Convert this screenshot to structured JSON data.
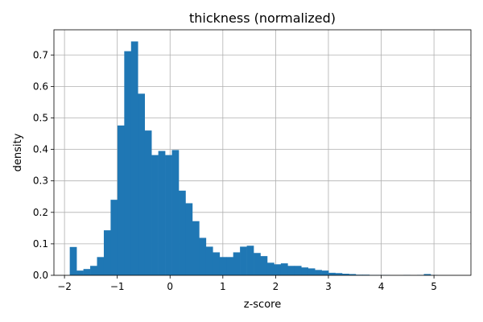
{
  "chart_data": {
    "type": "bar",
    "title": "thickness (normalized)",
    "xlabel": "z-score",
    "ylabel": "density",
    "xlim": [
      -2.2,
      5.7
    ],
    "ylim": [
      0,
      0.78
    ],
    "grid": true,
    "bar_color": "#1f77b4",
    "bin_edges": [
      -1.9,
      -1.771,
      -1.642,
      -1.513,
      -1.384,
      -1.255,
      -1.126,
      -0.997,
      -0.868,
      -0.739,
      -0.61,
      -0.481,
      -0.352,
      -0.223,
      -0.094,
      0.035,
      0.164,
      0.293,
      0.422,
      0.551,
      0.68,
      0.809,
      0.938,
      1.067,
      1.196,
      1.325,
      1.454,
      1.583,
      1.712,
      1.841,
      1.97,
      2.099,
      2.228,
      2.357,
      2.486,
      2.615,
      2.744,
      2.873,
      3.002,
      3.131,
      3.26,
      3.389,
      3.518,
      3.647,
      3.776,
      3.905,
      4.034,
      4.163,
      4.292,
      4.421,
      4.55,
      4.679,
      4.808,
      4.937,
      5.066,
      5.195,
      5.324
    ],
    "values": [
      0.09,
      0.015,
      0.02,
      0.03,
      0.058,
      0.143,
      0.24,
      0.476,
      0.712,
      0.743,
      0.577,
      0.46,
      0.382,
      0.395,
      0.382,
      0.398,
      0.269,
      0.229,
      0.172,
      0.119,
      0.091,
      0.073,
      0.058,
      0.058,
      0.073,
      0.091,
      0.094,
      0.071,
      0.061,
      0.04,
      0.035,
      0.038,
      0.03,
      0.03,
      0.025,
      0.022,
      0.017,
      0.015,
      0.008,
      0.007,
      0.005,
      0.004,
      0.002,
      0.002,
      0.001,
      0.001,
      0.001,
      0.0,
      0.0,
      0.001,
      0.0,
      0.001,
      0.004,
      0.001,
      0.0,
      0.0
    ],
    "xticks": [
      -2,
      -1,
      0,
      1,
      2,
      3,
      4,
      5
    ],
    "yticks": [
      0.0,
      0.1,
      0.2,
      0.3,
      0.4,
      0.5,
      0.6,
      0.7
    ]
  }
}
